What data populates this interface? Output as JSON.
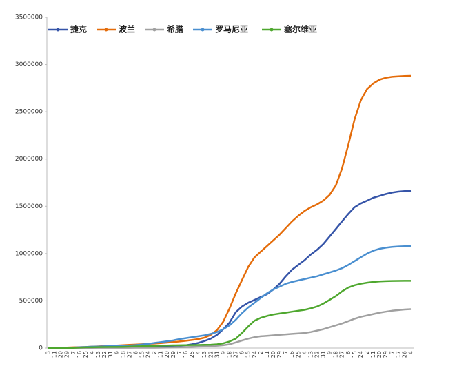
{
  "chart_data": {
    "type": "line",
    "categories": [
      "3",
      "11",
      "20",
      "29",
      "7",
      "16",
      "25",
      "4",
      "13",
      "22",
      "31",
      "9",
      "18",
      "27",
      "6",
      "15",
      "24",
      "2",
      "11",
      "20",
      "29",
      "7",
      "16",
      "25",
      "4",
      "13",
      "22",
      "31",
      "9",
      "18",
      "27",
      "6",
      "15",
      "24",
      "2",
      "11",
      "20",
      "29",
      "7",
      "16",
      "25",
      "4",
      "13",
      "22",
      "31",
      "9",
      "18",
      "27",
      "6",
      "15",
      "24",
      "2",
      "11",
      "20",
      "29",
      "7",
      "17",
      "26",
      "4"
    ],
    "series": [
      {
        "name": "捷克",
        "color": "#3554a8",
        "values": [
          0,
          100,
          500,
          1000,
          3000,
          5000,
          6000,
          7000,
          8000,
          8500,
          9000,
          9500,
          10000,
          11000,
          12000,
          13000,
          14000,
          16000,
          18000,
          20000,
          23000,
          26000,
          30000,
          40000,
          55000,
          75000,
          100000,
          140000,
          200000,
          270000,
          380000,
          440000,
          480000,
          510000,
          540000,
          570000,
          620000,
          680000,
          760000,
          830000,
          880000,
          930000,
          990000,
          1040000,
          1100000,
          1180000,
          1260000,
          1340000,
          1420000,
          1490000,
          1530000,
          1560000,
          1590000,
          1610000,
          1630000,
          1645000,
          1655000,
          1660000,
          1665000
        ]
      },
      {
        "name": "波兰",
        "color": "#e46c0a",
        "values": [
          0,
          100,
          1500,
          5000,
          8000,
          10000,
          12000,
          15000,
          18000,
          22000,
          24000,
          27000,
          31000,
          34000,
          37000,
          41000,
          45000,
          48000,
          53000,
          58000,
          64000,
          70000,
          77000,
          85000,
          95000,
          110000,
          140000,
          190000,
          280000,
          420000,
          580000,
          720000,
          860000,
          960000,
          1020000,
          1080000,
          1140000,
          1200000,
          1270000,
          1340000,
          1400000,
          1450000,
          1490000,
          1520000,
          1560000,
          1620000,
          1720000,
          1900000,
          2150000,
          2420000,
          2620000,
          2740000,
          2800000,
          2840000,
          2860000,
          2870000,
          2875000,
          2878000,
          2880000
        ]
      },
      {
        "name": "希腊",
        "color": "#a0a0a0",
        "values": [
          0,
          10,
          100,
          400,
          1000,
          1500,
          2000,
          2500,
          2700,
          2800,
          2900,
          3000,
          3100,
          3200,
          3300,
          3500,
          3700,
          4000,
          4500,
          5000,
          7000,
          9000,
          11000,
          13000,
          15000,
          17000,
          20000,
          25000,
          30000,
          40000,
          60000,
          80000,
          100000,
          115000,
          125000,
          130000,
          135000,
          140000,
          145000,
          150000,
          155000,
          160000,
          170000,
          185000,
          200000,
          220000,
          240000,
          260000,
          285000,
          310000,
          330000,
          345000,
          360000,
          375000,
          385000,
          395000,
          402000,
          408000,
          412000
        ]
      },
      {
        "name": "罗马尼亚",
        "color": "#4a8fd0",
        "values": [
          0,
          100,
          1000,
          3000,
          6000,
          9000,
          12000,
          15000,
          17000,
          19000,
          21000,
          23000,
          25000,
          27000,
          32000,
          38000,
          45000,
          55000,
          63000,
          72000,
          82000,
          95000,
          105000,
          115000,
          125000,
          135000,
          150000,
          170000,
          200000,
          240000,
          300000,
          370000,
          430000,
          480000,
          530000,
          580000,
          620000,
          650000,
          680000,
          700000,
          715000,
          730000,
          745000,
          760000,
          780000,
          800000,
          820000,
          845000,
          880000,
          920000,
          960000,
          1000000,
          1030000,
          1050000,
          1062000,
          1070000,
          1075000,
          1078000,
          1080000
        ]
      },
      {
        "name": "塞尔维亚",
        "color": "#4ea72e",
        "values": [
          0,
          0,
          50,
          500,
          1500,
          5000,
          8000,
          9500,
          10500,
          11000,
          11500,
          12000,
          13000,
          15000,
          18000,
          20000,
          22000,
          24000,
          26000,
          28000,
          29000,
          30000,
          31000,
          32000,
          33000,
          34000,
          36000,
          40000,
          50000,
          70000,
          100000,
          160000,
          230000,
          290000,
          320000,
          340000,
          355000,
          365000,
          375000,
          385000,
          395000,
          405000,
          420000,
          440000,
          470000,
          510000,
          550000,
          600000,
          640000,
          665000,
          680000,
          692000,
          700000,
          705000,
          708000,
          710000,
          711000,
          712000,
          712000
        ]
      }
    ],
    "ylim": [
      0,
      3500000
    ],
    "yticks": [
      0,
      500000,
      1000000,
      1500000,
      2000000,
      2500000,
      3000000,
      3500000
    ],
    "legend": "top-left"
  }
}
